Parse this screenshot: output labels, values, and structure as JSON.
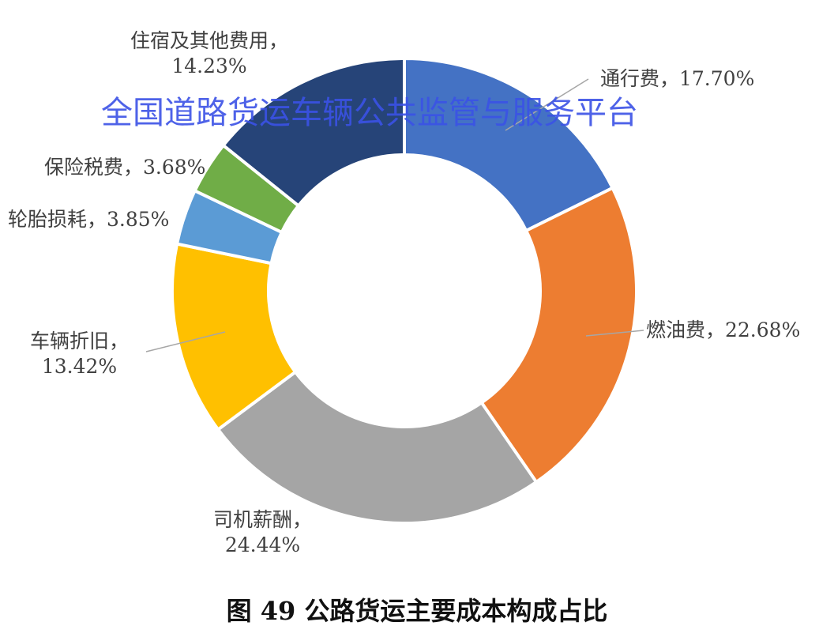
{
  "chart_data": {
    "type": "pie",
    "donut": true,
    "title": "图 49 公路货运主要成本构成占比",
    "categories": [
      "通行费",
      "燃油费",
      "司机薪酬",
      "车辆折旧",
      "轮胎损耗",
      "保险税费",
      "住宿及其他费用"
    ],
    "values": [
      17.7,
      22.68,
      24.44,
      13.42,
      3.85,
      3.68,
      14.23
    ],
    "labels": [
      "通行费，17.70%",
      "燃油费，22.68%",
      "司机薪酬，",
      "车辆折旧，",
      "轮胎损耗，3.85%",
      "保险税费，3.68%",
      "住宿及其他费用，"
    ],
    "labels2": [
      "",
      "",
      "24.44%",
      "13.42%",
      "",
      "",
      "14.23%"
    ],
    "colors": [
      "#4472C4",
      "#ED7D31",
      "#A5A5A5",
      "#FFC000",
      "#5B9BD5",
      "#70AD47",
      "#264478"
    ],
    "start": "12 o'clock, clockwise"
  },
  "watermark": "全国道路货运车辆公共监管与服务平台"
}
